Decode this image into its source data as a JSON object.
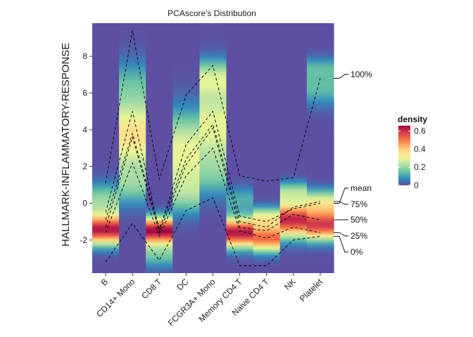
{
  "chart_data": {
    "type": "heatmap",
    "title": "PCAscore's Distribution",
    "xlabel": "",
    "ylabel": "HALLMARK-INFLAMMATORY-RESPONSE",
    "categories": [
      "B",
      "CD14+ Mono",
      "CD8 T",
      "DC",
      "FCGR3A+ Mono",
      "Memory CD4 T",
      "Naive CD4 T",
      "NK",
      "Platelet"
    ],
    "ylim": [
      -3.8,
      9.8
    ],
    "yticks": [
      -2,
      0,
      2,
      4,
      6,
      8
    ],
    "grid": false,
    "density_peaks": [
      [
        {
          "center": -1.45,
          "spread": 0.55,
          "density": 0.62
        },
        {
          "center": 0.1,
          "spread": 0.7,
          "density": 0.2
        }
      ],
      [
        {
          "center": 3.7,
          "spread": 1.3,
          "density": 0.36
        },
        {
          "center": 1.0,
          "spread": 0.8,
          "density": 0.16
        },
        {
          "center": 6.5,
          "spread": 1.0,
          "density": 0.12
        }
      ],
      [
        {
          "center": -1.5,
          "spread": 0.5,
          "density": 0.66
        },
        {
          "center": -2.8,
          "spread": 0.5,
          "density": 0.15
        }
      ],
      [
        {
          "center": 2.8,
          "spread": 1.5,
          "density": 0.3
        },
        {
          "center": 0.5,
          "spread": 0.8,
          "density": 0.14
        }
      ],
      [
        {
          "center": 4.2,
          "spread": 1.5,
          "density": 0.3
        },
        {
          "center": 6.8,
          "spread": 0.7,
          "density": 0.22
        },
        {
          "center": 1.5,
          "spread": 0.9,
          "density": 0.12
        }
      ],
      [
        {
          "center": -1.6,
          "spread": 0.55,
          "density": 0.64
        },
        {
          "center": 0.2,
          "spread": 0.5,
          "density": 0.12
        }
      ],
      [
        {
          "center": -1.9,
          "spread": 0.5,
          "density": 0.52
        },
        {
          "center": -0.8,
          "spread": 0.4,
          "density": 0.3
        }
      ],
      [
        {
          "center": -0.9,
          "spread": 0.65,
          "density": 0.62
        },
        {
          "center": 0.6,
          "spread": 0.4,
          "density": 0.2
        }
      ],
      [
        {
          "center": -1.2,
          "spread": 0.55,
          "density": 0.58
        },
        {
          "center": 0.0,
          "spread": 0.5,
          "density": 0.3
        },
        {
          "center": 6.3,
          "spread": 0.7,
          "density": 0.14
        },
        {
          "center": 7.4,
          "spread": 0.4,
          "density": 0.1
        }
      ]
    ],
    "quantile_lines": [
      {
        "name": "100%",
        "values": [
          1.1,
          9.4,
          1.3,
          5.9,
          7.5,
          1.5,
          1.2,
          1.4,
          6.8
        ]
      },
      {
        "name": "mean",
        "values": [
          -0.5,
          5.0,
          -1.5,
          3.2,
          5.0,
          -0.7,
          -1.0,
          -0.3,
          0.0
        ]
      },
      {
        "name": "75%",
        "values": [
          -0.9,
          3.8,
          -1.4,
          2.4,
          4.3,
          -1.0,
          -1.3,
          -0.2,
          0.1
        ]
      },
      {
        "name": "50%",
        "values": [
          -1.3,
          3.6,
          -1.6,
          2.1,
          4.1,
          -1.3,
          -1.5,
          -0.6,
          -0.9
        ]
      },
      {
        "name": "25%",
        "values": [
          -1.6,
          2.2,
          -1.8,
          1.5,
          3.0,
          -1.5,
          -1.9,
          -1.3,
          -1.6
        ]
      },
      {
        "name": "0%",
        "values": [
          -3.2,
          -1.1,
          -3.1,
          -0.4,
          0.3,
          -3.4,
          -3.4,
          -2.0,
          -1.8
        ]
      }
    ],
    "legend": {
      "title": "density",
      "placement": "right",
      "ticks": [
        0,
        0.2,
        0.4,
        0.6
      ],
      "range": [
        0,
        0.66
      ],
      "colors": [
        "#5e4fa2",
        "#3288bd",
        "#66c2a5",
        "#abdda4",
        "#e6f598",
        "#fee08b",
        "#fdae61",
        "#f46d43",
        "#d53e4f",
        "#9e0142"
      ]
    }
  }
}
